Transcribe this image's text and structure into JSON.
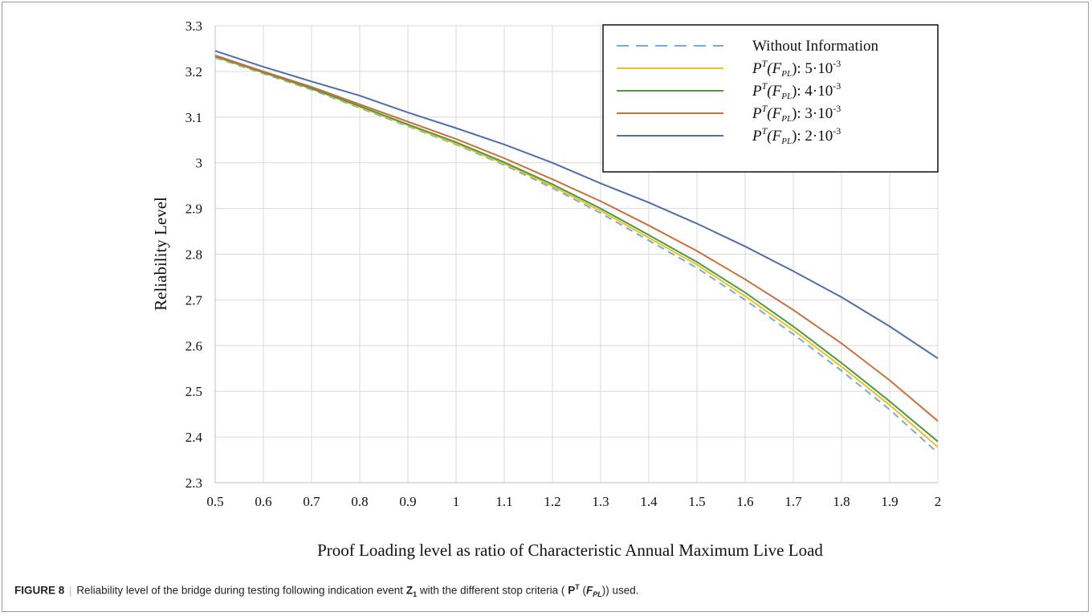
{
  "chart_data": {
    "type": "line",
    "xlabel": "Proof Loading level as ratio of Characteristic Annual Maximum Live Load",
    "ylabel": "Reliability  Level",
    "xlim": [
      0.5,
      2.0
    ],
    "ylim": [
      2.3,
      3.3
    ],
    "x_ticks": [
      "0.5",
      "0.6",
      "0.7",
      "0.8",
      "0.9",
      "1",
      "1.1",
      "1.2",
      "1.3",
      "1.4",
      "1.5",
      "1.6",
      "1.7",
      "1.8",
      "1.9",
      "2"
    ],
    "y_ticks": [
      "2.3",
      "2.4",
      "2.5",
      "2.6",
      "2.7",
      "2.8",
      "2.9",
      "3",
      "3.1",
      "3.2",
      "3.3"
    ],
    "grid": true,
    "legend_position": "top-right",
    "x": [
      0.5,
      0.6,
      0.7,
      0.8,
      0.9,
      1.0,
      1.1,
      1.2,
      1.3,
      1.4,
      1.5,
      1.6,
      1.7,
      1.8,
      1.9,
      2.0
    ],
    "series": [
      {
        "name": "Without Information",
        "legend_text": "Without Information",
        "color": "#7aabd8",
        "dash": true,
        "values": [
          3.23,
          3.195,
          3.16,
          3.12,
          3.08,
          3.04,
          2.995,
          2.945,
          2.89,
          2.83,
          2.77,
          2.7,
          2.625,
          2.545,
          2.46,
          2.365
        ]
      },
      {
        "name": "P^T(F_PL): 5·10^-3",
        "legend_prefix": "P",
        "legend_sup": "T",
        "legend_mid": "(F",
        "legend_sub": "PL",
        "legend_suffix": "): 5·10",
        "legend_exp": "-3",
        "color": "#ebc02a",
        "dash": false,
        "values": [
          3.232,
          3.197,
          3.162,
          3.122,
          3.082,
          3.042,
          2.998,
          2.949,
          2.895,
          2.836,
          2.777,
          2.708,
          2.634,
          2.554,
          2.47,
          2.378
        ]
      },
      {
        "name": "P^T(F_PL): 4·10^-3",
        "legend_prefix": "P",
        "legend_sup": "T",
        "legend_mid": "(F",
        "legend_sub": "PL",
        "legend_suffix": "): 4·10",
        "legend_exp": "-3",
        "color": "#4e9a3c",
        "dash": false,
        "values": [
          3.233,
          3.198,
          3.163,
          3.124,
          3.084,
          3.045,
          3.001,
          2.953,
          2.9,
          2.842,
          2.783,
          2.716,
          2.642,
          2.562,
          2.478,
          2.39
        ]
      },
      {
        "name": "P^T(F_PL): 3·10^-3",
        "legend_prefix": "P",
        "legend_sup": "T",
        "legend_mid": "(F",
        "legend_sub": "PL",
        "legend_suffix": "): 3·10",
        "legend_exp": "-3",
        "color": "#c8703e",
        "dash": false,
        "values": [
          3.235,
          3.2,
          3.166,
          3.128,
          3.09,
          3.052,
          3.01,
          2.964,
          2.916,
          2.863,
          2.807,
          2.745,
          2.678,
          2.605,
          2.524,
          2.435
        ]
      },
      {
        "name": "P^T(F_PL): 2·10^-3",
        "legend_prefix": "P",
        "legend_sup": "T",
        "legend_mid": "(F",
        "legend_sub": "PL",
        "legend_suffix": "): 2·10",
        "legend_exp": "-3",
        "color": "#4f6ea8",
        "dash": false,
        "values": [
          3.245,
          3.21,
          3.178,
          3.147,
          3.11,
          3.076,
          3.04,
          3.0,
          2.955,
          2.913,
          2.867,
          2.817,
          2.763,
          2.706,
          2.642,
          2.572
        ]
      }
    ]
  },
  "caption": {
    "label": "FIGURE 8",
    "sep": "|",
    "text_before": " Reliability level of the bridge during testing following indication event ",
    "z": "Z",
    "z_sub": "1",
    "text_middle": " with the different stop criteria (",
    "p": "P",
    "p_sup": "T",
    "f_open": " (",
    "f": "F",
    "f_sub": "PL",
    "f_close": "))",
    "text_after": " used."
  }
}
